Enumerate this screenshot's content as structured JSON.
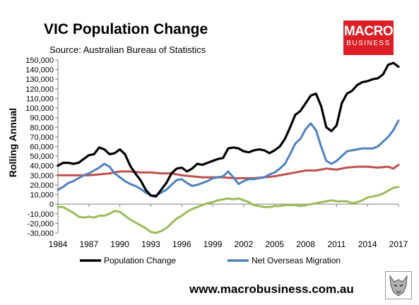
{
  "header": {
    "title": "VIC Population Change",
    "subtitle": "Source: Australian Bureau of Statistics"
  },
  "logo": {
    "line1": "MACRO",
    "line2": "BUSINESS",
    "color": "#dc1f26"
  },
  "footer": {
    "url": "www.macrobusiness.com.au",
    "mark_icon": "wolf-head-icon"
  },
  "chart_data": {
    "type": "line",
    "title": "VIC Population Change",
    "subtitle": "Source: Australian Bureau of Statistics",
    "ylabel": "Rolling Annual",
    "xlabel": "",
    "xlim": [
      1984,
      2017
    ],
    "ylim": [
      -30000,
      150000
    ],
    "xticks": [
      1984,
      1987,
      1990,
      1993,
      1996,
      1999,
      2002,
      2005,
      2008,
      2011,
      2014,
      2017
    ],
    "xtick_labels": [
      "1984",
      "1987",
      "1990",
      "1993",
      "1996",
      "1999",
      "2002",
      "2005",
      "2008",
      "2011",
      "2014",
      "2017"
    ],
    "yticks": [
      -30000,
      -20000,
      -10000,
      0,
      10000,
      20000,
      30000,
      40000,
      50000,
      60000,
      70000,
      80000,
      90000,
      100000,
      110000,
      120000,
      130000,
      140000,
      150000
    ],
    "ytick_labels": [
      "-30,000",
      "-20,000",
      "-10,000",
      "0",
      "10,000",
      "20,000",
      "30,000",
      "40,000",
      "50,000",
      "60,000",
      "70,000",
      "80,000",
      "90,000",
      "100,000",
      "110,000",
      "120,000",
      "130,000",
      "140,000",
      "150,000"
    ],
    "grid": false,
    "legend_position": "bottom",
    "series": [
      {
        "name": "Population Change",
        "color": "#000000",
        "x": [
          1984,
          1984.5,
          1985,
          1985.5,
          1986,
          1986.5,
          1987,
          1987.5,
          1988,
          1988.5,
          1989,
          1989.5,
          1990,
          1990.5,
          1991,
          1991.5,
          1992,
          1992.5,
          1993,
          1993.5,
          1994,
          1994.5,
          1995,
          1995.5,
          1996,
          1996.5,
          1997,
          1997.5,
          1998,
          1998.5,
          1999,
          1999.5,
          2000,
          2000.5,
          2001,
          2001.5,
          2002,
          2002.5,
          2003,
          2003.5,
          2004,
          2004.5,
          2005,
          2005.5,
          2006,
          2006.5,
          2007,
          2007.5,
          2008,
          2008.5,
          2009,
          2009.5,
          2010,
          2010.5,
          2011,
          2011.5,
          2012,
          2012.5,
          2013,
          2013.5,
          2014,
          2014.5,
          2015,
          2015.5,
          2016,
          2016.5,
          2017
        ],
        "values": [
          40000,
          43000,
          43000,
          42000,
          43000,
          47000,
          51000,
          52000,
          59000,
          57000,
          52000,
          53000,
          57000,
          52000,
          40000,
          32000,
          25000,
          15000,
          9000,
          8000,
          15000,
          22000,
          32000,
          37000,
          38000,
          34000,
          37000,
          42000,
          41000,
          43000,
          45000,
          47000,
          48000,
          58000,
          59000,
          58000,
          55000,
          54000,
          56000,
          57000,
          56000,
          53000,
          56000,
          60000,
          68000,
          80000,
          93000,
          97000,
          105000,
          113000,
          115000,
          102000,
          80000,
          76000,
          82000,
          105000,
          115000,
          118000,
          124000,
          127000,
          128000,
          130000,
          131000,
          135000,
          145000,
          147000,
          143000
        ]
      },
      {
        "name": "Net Overseas Migration",
        "color": "#4f81bd",
        "x": [
          1984,
          1984.5,
          1985,
          1985.5,
          1986,
          1986.5,
          1987,
          1987.5,
          1988,
          1988.5,
          1989,
          1989.5,
          1990,
          1990.5,
          1991,
          1991.5,
          1992,
          1992.5,
          1993,
          1993.5,
          1994,
          1994.5,
          1995,
          1995.5,
          1996,
          1996.5,
          1997,
          1997.5,
          1998,
          1998.5,
          1999,
          1999.5,
          2000,
          2000.5,
          2001,
          2001.5,
          2002,
          2002.5,
          2003,
          2003.5,
          2004,
          2004.5,
          2005,
          2005.5,
          2006,
          2006.5,
          2007,
          2007.5,
          2008,
          2008.5,
          2009,
          2009.5,
          2010,
          2010.5,
          2011,
          2011.5,
          2012,
          2012.5,
          2013,
          2013.5,
          2014,
          2014.5,
          2015,
          2015.5,
          2016,
          2016.5,
          2017
        ],
        "values": [
          15000,
          18000,
          22000,
          24000,
          27000,
          30000,
          32000,
          35000,
          38000,
          42000,
          39000,
          32000,
          28000,
          24000,
          21000,
          19000,
          16000,
          12000,
          9000,
          9000,
          12000,
          15000,
          20000,
          25000,
          26000,
          22000,
          19000,
          20000,
          22000,
          24000,
          27000,
          28000,
          29000,
          34000,
          28000,
          21000,
          24000,
          26000,
          26000,
          27000,
          28000,
          31000,
          33000,
          37000,
          42000,
          52000,
          63000,
          68000,
          78000,
          84000,
          77000,
          60000,
          45000,
          42000,
          45000,
          50000,
          55000,
          56000,
          57000,
          58000,
          58000,
          58000,
          60000,
          65000,
          70000,
          77000,
          87000
        ]
      },
      {
        "name": "",
        "color": "#c0504d",
        "x": [
          1984,
          1985,
          1986,
          1987,
          1988,
          1989,
          1990,
          1991,
          1992,
          1993,
          1994,
          1995,
          1996,
          1997,
          1998,
          1999,
          2000,
          2001,
          2002,
          2003,
          2004,
          2005,
          2006,
          2007,
          2008,
          2009,
          2010,
          2011,
          2012,
          2013,
          2014,
          2015,
          2016,
          2016.5,
          2017
        ],
        "values": [
          30000,
          30000,
          30000,
          30000,
          31000,
          32000,
          34000,
          34000,
          33000,
          33000,
          32000,
          32000,
          30000,
          29000,
          28000,
          28000,
          28000,
          27000,
          27000,
          27000,
          28000,
          29000,
          31000,
          33000,
          35000,
          35000,
          37000,
          36000,
          38000,
          39000,
          39000,
          38000,
          39000,
          37000,
          41000
        ]
      },
      {
        "name": "",
        "color": "#9bbb59",
        "x": [
          1984,
          1984.5,
          1985,
          1985.5,
          1986,
          1986.5,
          1987,
          1987.5,
          1988,
          1988.5,
          1989,
          1989.5,
          1990,
          1990.5,
          1991,
          1991.5,
          1992,
          1992.5,
          1993,
          1993.5,
          1994,
          1994.5,
          1995,
          1995.5,
          1996,
          1996.5,
          1997,
          1997.5,
          1998,
          1998.5,
          1999,
          1999.5,
          2000,
          2000.5,
          2001,
          2001.5,
          2002,
          2002.5,
          2003,
          2003.5,
          2004,
          2004.5,
          2005,
          2005.5,
          2006,
          2006.5,
          2007,
          2007.5,
          2008,
          2008.5,
          2009,
          2009.5,
          2010,
          2010.5,
          2011,
          2011.5,
          2012,
          2012.5,
          2013,
          2013.5,
          2014,
          2014.5,
          2015,
          2015.5,
          2016,
          2016.5,
          2017
        ],
        "values": [
          -3000,
          -3000,
          -6000,
          -9000,
          -13000,
          -14000,
          -13000,
          -14000,
          -12000,
          -12000,
          -10000,
          -7000,
          -8000,
          -12000,
          -16000,
          -19000,
          -22000,
          -25000,
          -29000,
          -30000,
          -28000,
          -25000,
          -20000,
          -15000,
          -12000,
          -8000,
          -5000,
          -3000,
          -1000,
          1000,
          2000,
          4000,
          5000,
          6000,
          5000,
          6000,
          4000,
          2000,
          -1000,
          -2000,
          -3000,
          -3000,
          -2000,
          -2000,
          -1000,
          -1000,
          -1000,
          -2000,
          -1000,
          0,
          1000,
          2000,
          3000,
          4000,
          3000,
          3000,
          3000,
          1000,
          2000,
          4000,
          7000,
          8000,
          9000,
          11000,
          14000,
          17000,
          18000
        ]
      }
    ]
  }
}
